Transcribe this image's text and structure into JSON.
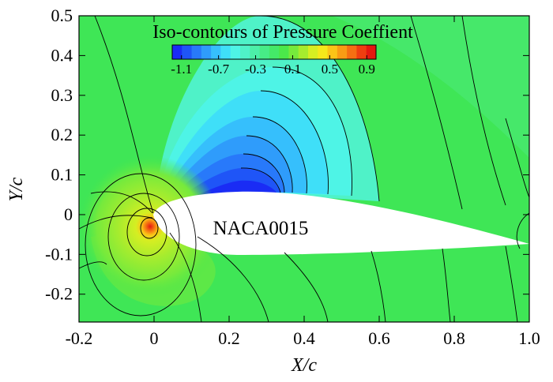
{
  "chart_data": {
    "type": "contour",
    "title": "Iso-contours of Pressure Coeffient",
    "xlabel": "X/c",
    "ylabel": "Y/c",
    "xlim": [
      -0.2,
      1.0
    ],
    "ylim": [
      -0.27,
      0.5
    ],
    "x_ticks": [
      "-0.2",
      "0",
      "0.2",
      "0.4",
      "0.6",
      "0.8",
      "1.0"
    ],
    "y_ticks": [
      "0.5",
      "0.4",
      "0.3",
      "0.2",
      "0.1",
      "0",
      "-0.1",
      "-0.2"
    ],
    "colorbar": {
      "label_ticks": [
        "-1.1",
        "-0.7",
        "-0.3",
        "0.1",
        "0.5",
        "0.9"
      ],
      "range": [
        -1.2,
        1.0
      ],
      "colors": [
        "#1a2cf5",
        "#1f55f7",
        "#2879fa",
        "#2f9cfb",
        "#36bffc",
        "#3fdff8",
        "#4ef4e6",
        "#4ff2c8",
        "#4cefa8",
        "#47ec86",
        "#44e968",
        "#4be84a",
        "#76ea3c",
        "#a6ec2e",
        "#d6ee22",
        "#f6e81a",
        "#fbc417",
        "#f99c14",
        "#f56f12",
        "#ef3e10",
        "#e51810"
      ]
    },
    "airfoil_label": "NACA0015",
    "series": [
      {
        "region": "suction-peak",
        "x": 0.25,
        "y": 0.07,
        "cp": -1.1
      },
      {
        "region": "stagnation",
        "x": -0.01,
        "y": -0.03,
        "cp": 1.0
      },
      {
        "region": "far-field",
        "cp": 0.0
      }
    ]
  }
}
